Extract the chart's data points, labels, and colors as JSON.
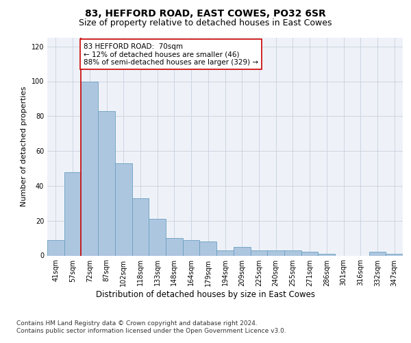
{
  "title": "83, HEFFORD ROAD, EAST COWES, PO32 6SR",
  "subtitle": "Size of property relative to detached houses in East Cowes",
  "xlabel": "Distribution of detached houses by size in East Cowes",
  "ylabel": "Number of detached properties",
  "categories": [
    "41sqm",
    "57sqm",
    "72sqm",
    "87sqm",
    "102sqm",
    "118sqm",
    "133sqm",
    "148sqm",
    "164sqm",
    "179sqm",
    "194sqm",
    "209sqm",
    "225sqm",
    "240sqm",
    "255sqm",
    "271sqm",
    "286sqm",
    "301sqm",
    "316sqm",
    "332sqm",
    "347sqm"
  ],
  "values": [
    9,
    48,
    100,
    83,
    53,
    33,
    21,
    10,
    9,
    8,
    3,
    5,
    3,
    3,
    3,
    2,
    1,
    0,
    0,
    2,
    1
  ],
  "bar_color": "#adc6e0",
  "bar_edge_color": "#6a9fc0",
  "vline_x_index": 2,
  "vline_color": "#cc0000",
  "annotation_text": "83 HEFFORD ROAD:  70sqm\n← 12% of detached houses are smaller (46)\n88% of semi-detached houses are larger (329) →",
  "annotation_box_color": "#ffffff",
  "annotation_box_edge": "#cc0000",
  "ylim": [
    0,
    125
  ],
  "yticks": [
    0,
    20,
    40,
    60,
    80,
    100,
    120
  ],
  "background_color": "#eef2f8",
  "footer_text": "Contains HM Land Registry data © Crown copyright and database right 2024.\nContains public sector information licensed under the Open Government Licence v3.0.",
  "title_fontsize": 10,
  "subtitle_fontsize": 9,
  "xlabel_fontsize": 8.5,
  "ylabel_fontsize": 8,
  "tick_fontsize": 7,
  "annotation_fontsize": 7.5,
  "footer_fontsize": 6.5
}
